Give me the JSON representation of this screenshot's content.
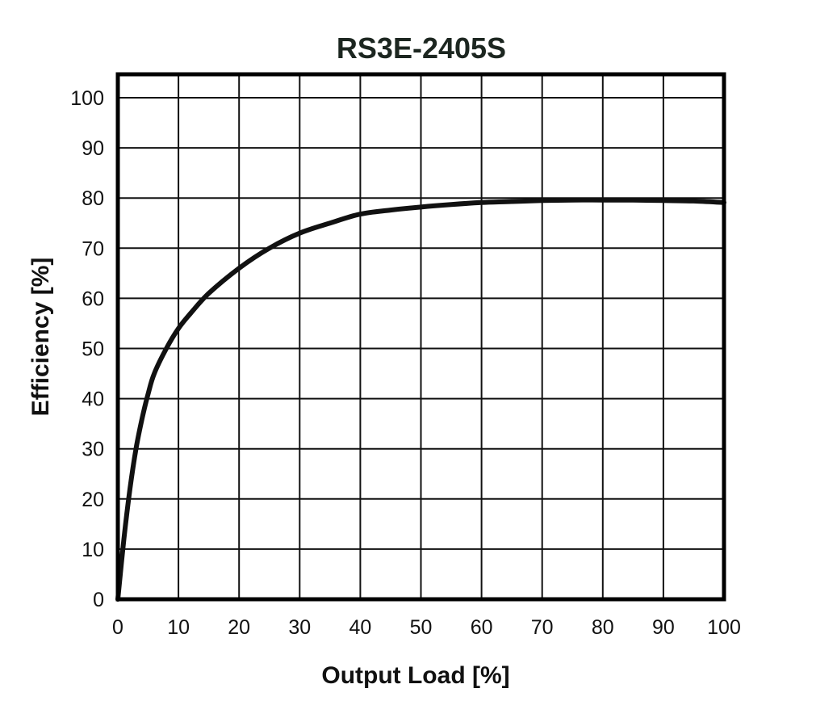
{
  "chart_data": {
    "type": "line",
    "title": "RS3E-2405S",
    "xlabel": "Output Load [%]",
    "ylabel": "Efficiency [%]",
    "xlim": [
      0,
      100
    ],
    "ylim": [
      0,
      100
    ],
    "x_ticks": [
      "0",
      "10",
      "20",
      "30",
      "40",
      "50",
      "60",
      "70",
      "80",
      "90",
      "100"
    ],
    "y_ticks": [
      "0",
      "10",
      "20",
      "30",
      "40",
      "50",
      "60",
      "70",
      "80",
      "90",
      "100"
    ],
    "grid": true,
    "legend": "none",
    "series": [
      {
        "x": [
          0,
          1,
          2,
          3,
          4,
          5,
          6,
          8,
          10,
          12,
          15,
          20,
          25,
          30,
          35,
          40,
          45,
          50,
          55,
          60,
          65,
          70,
          75,
          80,
          85,
          90,
          95,
          100
        ],
        "y": [
          0,
          12,
          22,
          30,
          36,
          41,
          45,
          50,
          54,
          57,
          61,
          66,
          70,
          73,
          75,
          76.8,
          77.6,
          78.2,
          78.7,
          79.1,
          79.3,
          79.5,
          79.6,
          79.6,
          79.6,
          79.5,
          79.4,
          79.1
        ]
      }
    ],
    "colors": {
      "line": "#111111",
      "grid": "#111111",
      "frame": "#000000",
      "title": "#1c2620"
    }
  }
}
